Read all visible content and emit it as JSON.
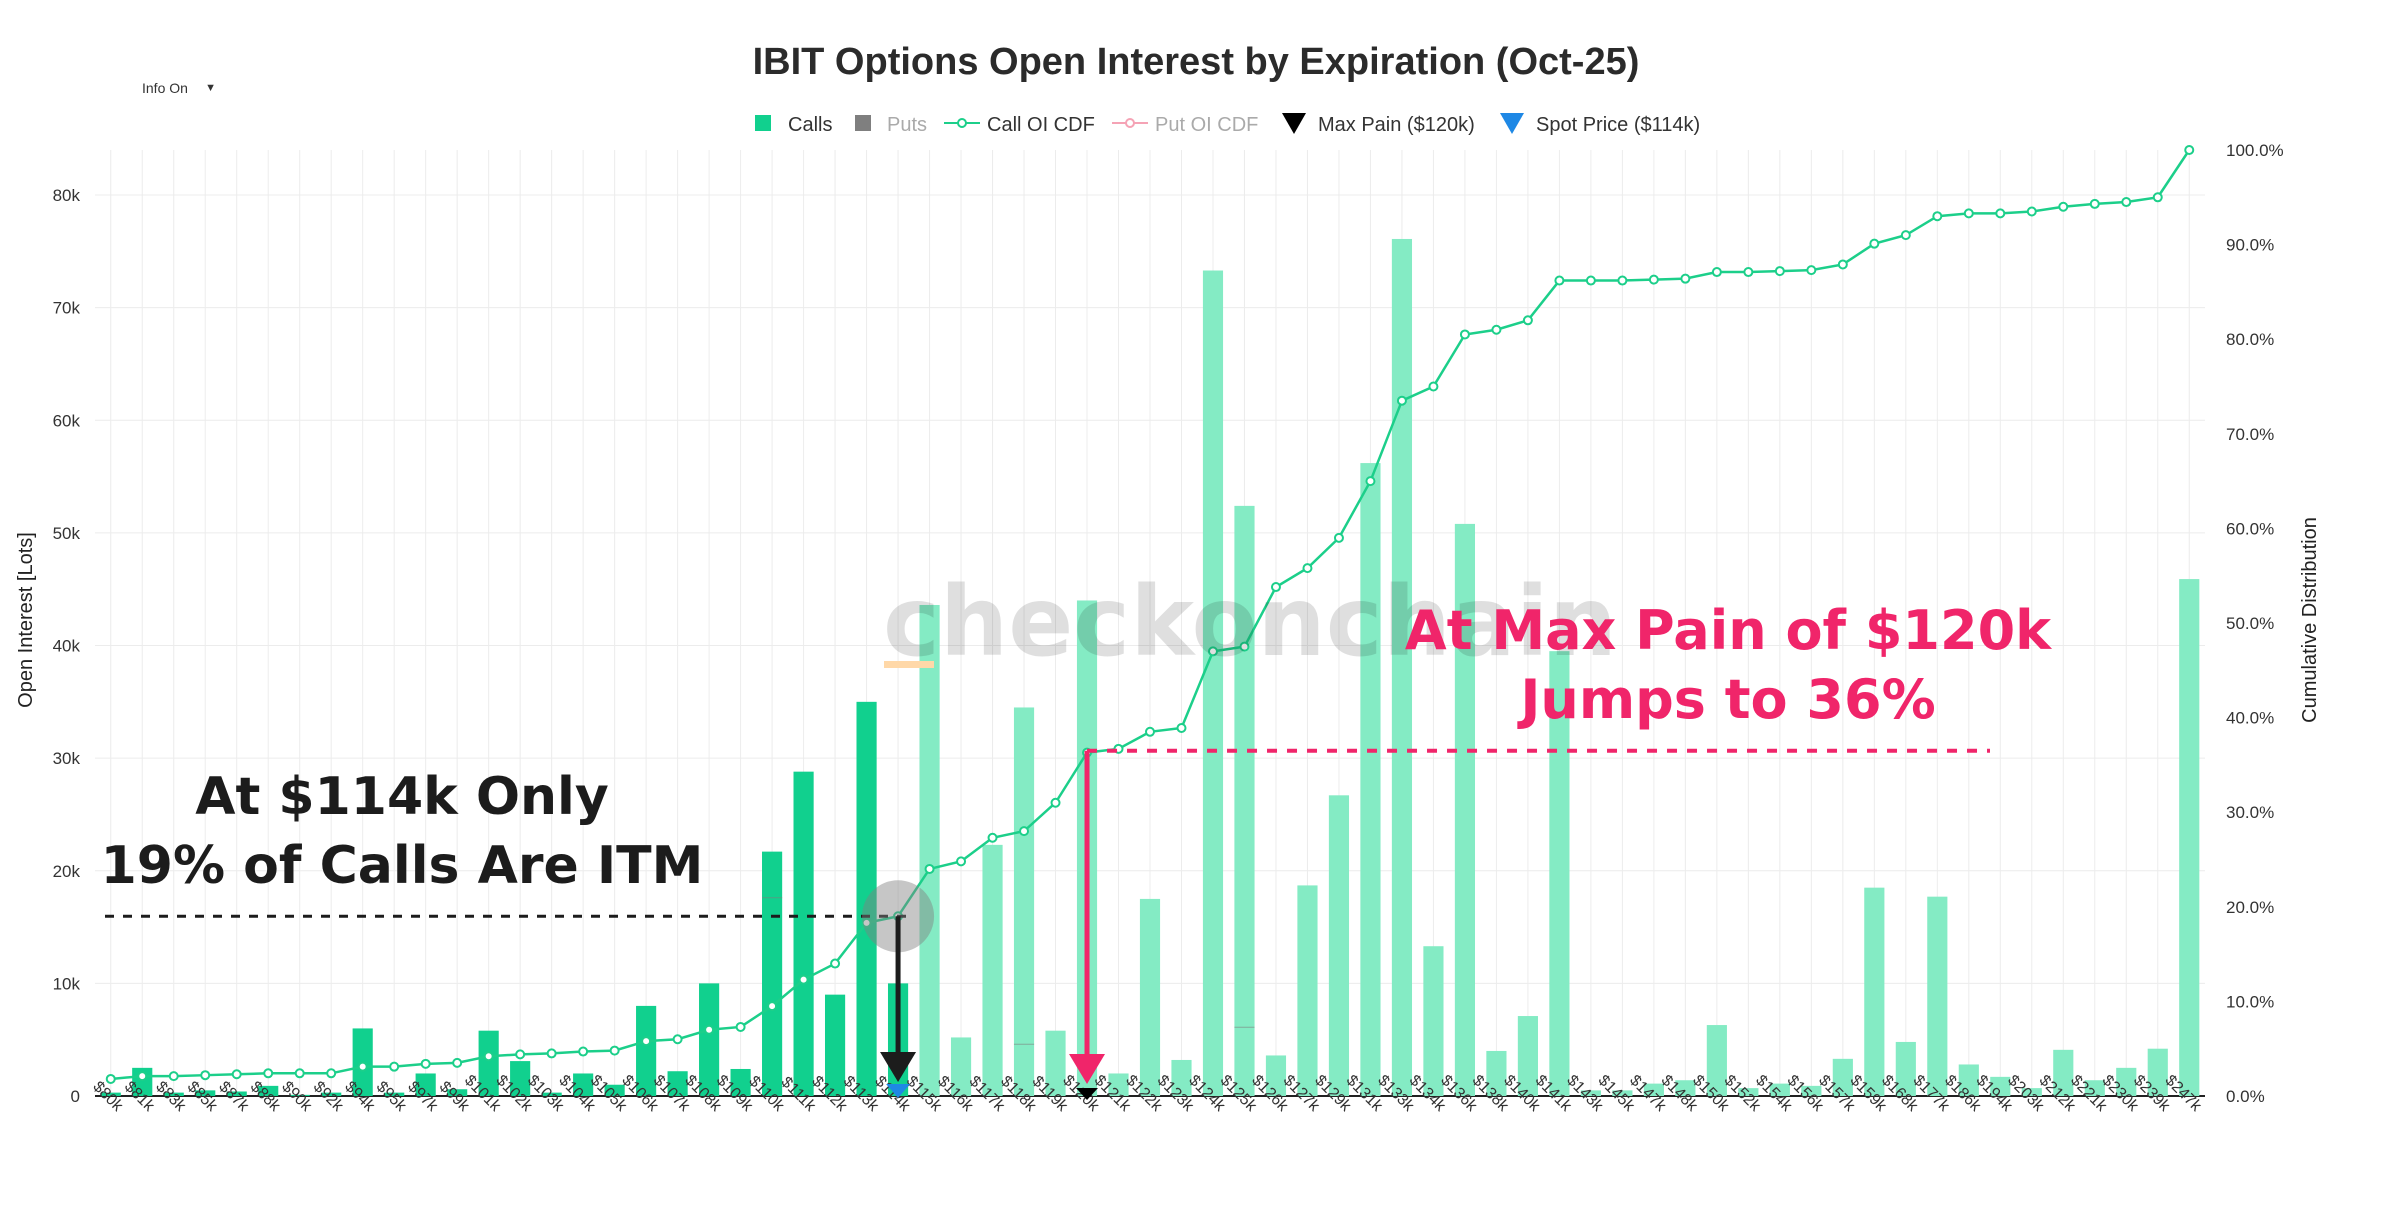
{
  "controls": {
    "info_label": "Info On",
    "info_caret": "▼"
  },
  "chart_data": {
    "type": "bar",
    "title": "IBIT Options Open Interest by Expiration (Oct-25)",
    "ylabel": "Open Interest [Lots]",
    "y2label": "Cumulative Distribution",
    "ylim": [
      0,
      84000
    ],
    "y2lim": [
      0,
      100
    ],
    "yticks": [
      0,
      10000,
      20000,
      30000,
      40000,
      50000,
      60000,
      70000,
      80000
    ],
    "ytick_labels": [
      "0",
      "10k",
      "20k",
      "30k",
      "40k",
      "50k",
      "60k",
      "70k",
      "80k"
    ],
    "y2ticks": [
      0,
      10,
      20,
      30,
      40,
      50,
      60,
      70,
      80,
      90,
      100
    ],
    "y2tick_labels": [
      "0.0%",
      "10.0%",
      "20.0%",
      "30.0%",
      "40.0%",
      "50.0%",
      "60.0%",
      "70.0%",
      "80.0%",
      "90.0%",
      "100.0%"
    ],
    "grid": true,
    "legend_position": "top",
    "legend": [
      {
        "label": "Calls",
        "symbol": "square",
        "color": "#11d08e"
      },
      {
        "label": "Puts",
        "symbol": "square",
        "color": "#7f7f7f"
      },
      {
        "label": "Call OI CDF",
        "symbol": "line-circle",
        "color": "#1ccf8a"
      },
      {
        "label": "Put OI CDF",
        "symbol": "line-circle",
        "color": "#f5a3b5"
      },
      {
        "label": "Max Pain ($120k)",
        "symbol": "triangle-down",
        "color": "#000000"
      },
      {
        "label": "Spot Price ($114k)",
        "symbol": "triangle-down",
        "color": "#1e88e5"
      }
    ],
    "categories": [
      "$80k",
      "$81k",
      "$83k",
      "$85k",
      "$87k",
      "$88k",
      "$90k",
      "$92k",
      "$94k",
      "$95k",
      "$97k",
      "$99k",
      "$101k",
      "$102k",
      "$103k",
      "$104k",
      "$105k",
      "$106k",
      "$107k",
      "$108k",
      "$109k",
      "$110k",
      "$111k",
      "$112k",
      "$113k",
      "$114k",
      "$115k",
      "$116k",
      "$117k",
      "$118k",
      "$119k",
      "$120k",
      "$121k",
      "$122k",
      "$123k",
      "$124k",
      "$125k",
      "$126k",
      "$127k",
      "$129k",
      "$131k",
      "$133k",
      "$134k",
      "$136k",
      "$138k",
      "$140k",
      "$141k",
      "$143k",
      "$145k",
      "$147k",
      "$148k",
      "$150k",
      "$152k",
      "$154k",
      "$156k",
      "$157k",
      "$159k",
      "$168k",
      "$177k",
      "$186k",
      "$194k",
      "$203k",
      "$212k",
      "$221k",
      "$230k",
      "$239k",
      "$247k"
    ],
    "series": [
      {
        "name": "Calls",
        "values": [
          300,
          2500,
          300,
          500,
          400,
          900,
          100,
          300,
          6000,
          300,
          2000,
          600,
          5800,
          3100,
          300,
          2000,
          1000,
          8000,
          2200,
          10000,
          2400,
          21700,
          28800,
          9000,
          35000,
          10000,
          43600,
          5200,
          22300,
          34500,
          5800,
          44000,
          2000,
          17500,
          3200,
          73300,
          52400,
          3600,
          18700,
          26700,
          56200,
          76100,
          13300,
          50800,
          4000,
          7100,
          39500,
          500,
          500,
          1100,
          1400,
          6300,
          700,
          1100,
          900,
          3300,
          18500,
          4800,
          17700,
          2800,
          1700,
          700,
          4100,
          1400,
          2500,
          4200,
          45900
        ]
      },
      {
        "name": "Puts",
        "values": [
          0,
          0,
          0,
          0,
          0,
          0,
          0,
          0,
          0,
          0,
          0,
          0,
          0,
          0,
          0,
          0,
          0,
          0,
          0,
          0,
          0,
          17600,
          0,
          0,
          0,
          0,
          0,
          0,
          0,
          4600,
          0,
          0,
          0,
          0,
          0,
          0,
          6100,
          0,
          0,
          0,
          0,
          0,
          0,
          0,
          0,
          0,
          0,
          0,
          0,
          0,
          0,
          0,
          0,
          0,
          0,
          0,
          0,
          0,
          0,
          0,
          0,
          0,
          0,
          0,
          0,
          0,
          0
        ]
      },
      {
        "name": "Call OI CDF",
        "values": [
          1.8,
          2.1,
          2.1,
          2.2,
          2.3,
          2.4,
          2.4,
          2.4,
          3.1,
          3.1,
          3.4,
          3.5,
          4.2,
          4.4,
          4.5,
          4.7,
          4.8,
          5.8,
          6.0,
          7.0,
          7.3,
          9.5,
          12.3,
          14.0,
          18.3,
          19.0,
          24.0,
          24.8,
          27.3,
          28.0,
          31.0,
          36.3,
          36.7,
          38.5,
          38.9,
          47.0,
          47.5,
          53.8,
          55.8,
          59.0,
          65.0,
          73.5,
          75.0,
          80.5,
          81.0,
          82.0,
          86.2,
          86.2,
          86.2,
          86.3,
          86.4,
          87.1,
          87.1,
          87.2,
          87.3,
          87.9,
          90.1,
          91.0,
          93.0,
          93.3,
          93.3,
          93.5,
          94.0,
          94.3,
          94.5,
          95.0,
          100.0
        ]
      }
    ],
    "markers": {
      "max_pain": {
        "category": "$120k",
        "label": "Max Pain ($120k)"
      },
      "spot": {
        "category": "$114k",
        "label": "Spot Price ($114k)"
      }
    },
    "annotations": [
      {
        "lines": [
          "At $114k Only",
          "19% of Calls Are ITM"
        ],
        "color": "#1c1c1c"
      },
      {
        "lines": [
          "At Max Pain of $120k",
          "Jumps to 36%"
        ],
        "color": "#f0256a"
      }
    ],
    "ref_levels": {
      "spot_cdf": 19,
      "maxpain_cdf": 36.5
    },
    "watermark": "checkonchain",
    "colors": {
      "itm_calls": "#11d08e",
      "otm_calls": "#84ebc4",
      "cdf": "#1ccf8a",
      "pink": "#f0256a",
      "grid": "#ececec"
    }
  }
}
